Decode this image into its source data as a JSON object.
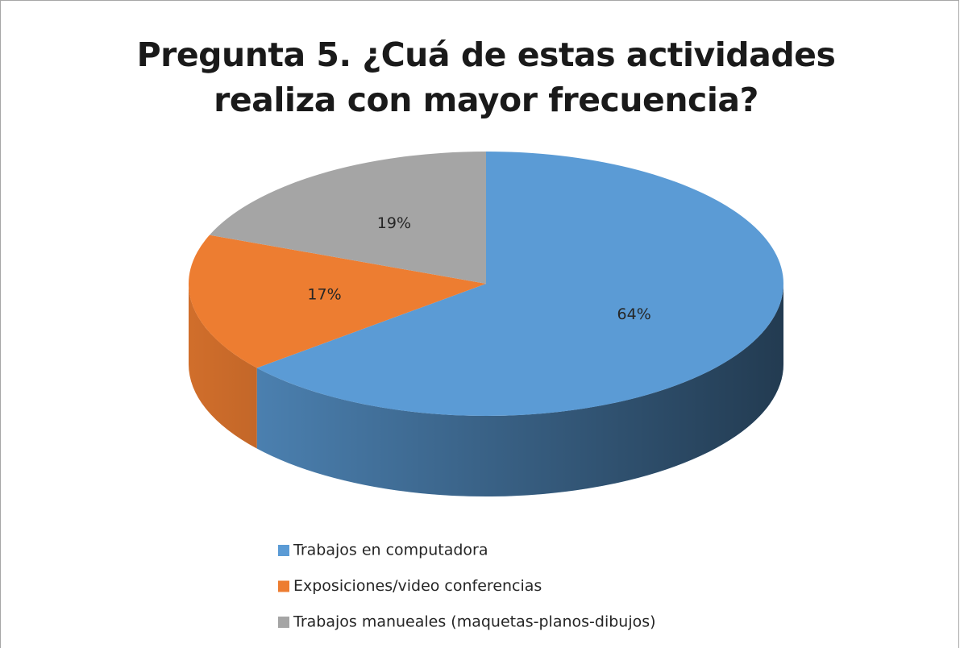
{
  "chart_data": {
    "type": "pie",
    "title": "Pregunta 5. ¿Cuá de estas actividades realiza con mayor frecuencia?",
    "categories": [
      "Trabajos en computadora",
      "Exposiciones/video conferencias",
      "Trabajos manueales (maquetas-planos-dibujos)"
    ],
    "values": [
      64,
      17,
      19
    ],
    "value_labels": [
      "64%",
      "17%",
      "19%"
    ],
    "colors": [
      "#5b9bd5",
      "#ed7d31",
      "#a5a5a5"
    ],
    "legend": "bottom"
  }
}
